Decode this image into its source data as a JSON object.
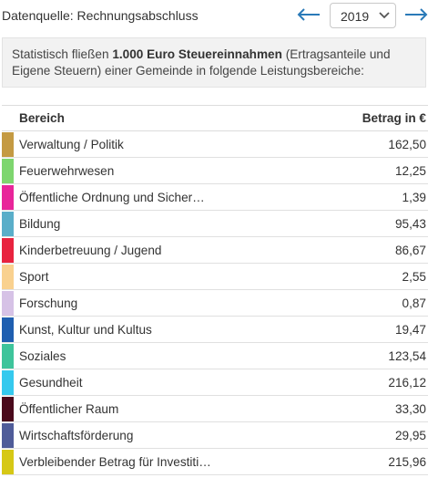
{
  "header": {
    "source_label": "Datenquelle: Rechnungsabschluss",
    "prev_icon": "arrow-left-icon",
    "next_icon": "arrow-right-icon",
    "year_selected": "2019"
  },
  "info": {
    "text_before": "Statistisch fließen ",
    "text_bold": "1.000 Euro Steuereinnahmen",
    "text_after": " (Ertragsanteile und Eigene Steuern) einer Gemeinde in folgende Leistungsbereiche:"
  },
  "table": {
    "col_area": "Bereich",
    "col_amount": "Betrag in €",
    "rows": [
      {
        "name": "Verwaltung / Politik",
        "value": "162,50",
        "color": "#c49a43"
      },
      {
        "name": "Feuerwehrwesen",
        "value": "12,25",
        "color": "#7ed66f"
      },
      {
        "name": "Öffentliche Ordnung und Sicher…",
        "value": "1,39",
        "color": "#e8259a"
      },
      {
        "name": "Bildung",
        "value": "95,43",
        "color": "#5aaec9"
      },
      {
        "name": "Kinderbetreuung / Jugend",
        "value": "86,67",
        "color": "#e8233f"
      },
      {
        "name": "Sport",
        "value": "2,55",
        "color": "#f9d18f"
      },
      {
        "name": "Forschung",
        "value": "0,87",
        "color": "#d6c2e6"
      },
      {
        "name": "Kunst, Kultur und Kultus",
        "value": "19,47",
        "color": "#1f5fb0"
      },
      {
        "name": "Soziales",
        "value": "123,54",
        "color": "#3ec49b"
      },
      {
        "name": "Gesundheit",
        "value": "216,12",
        "color": "#35c9ee"
      },
      {
        "name": "Öffentlicher Raum",
        "value": "33,30",
        "color": "#4a0a1c"
      },
      {
        "name": "Wirtschaftsförderung",
        "value": "29,95",
        "color": "#4f5c99"
      },
      {
        "name": "Verbleibender Betrag für Investiti…",
        "value": "215,96",
        "color": "#d6c816"
      }
    ]
  }
}
